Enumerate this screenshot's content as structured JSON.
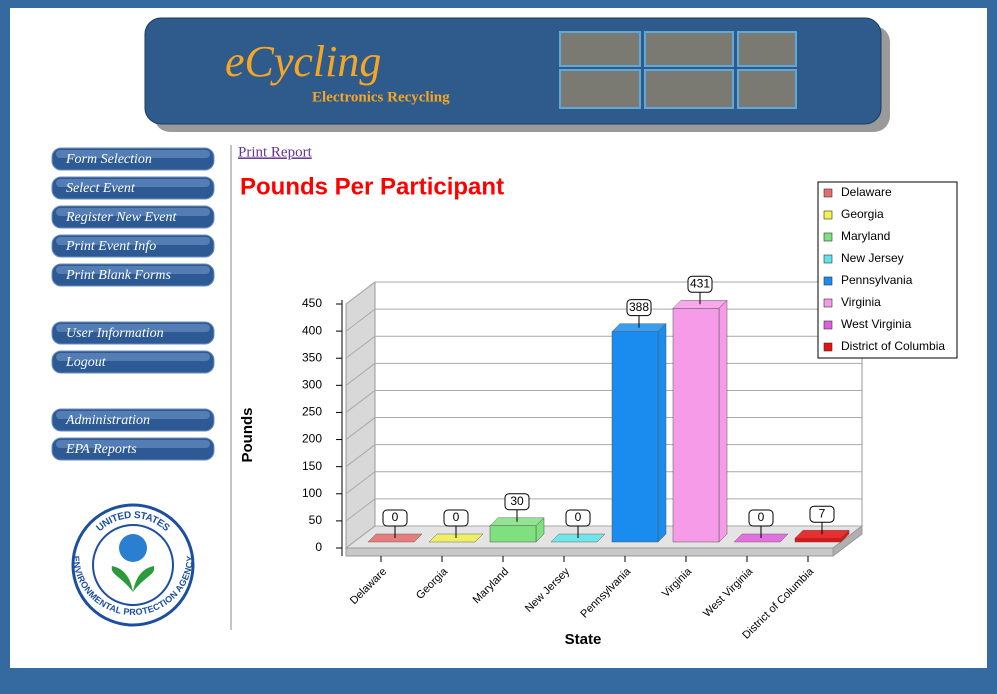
{
  "header": {
    "logo": "eCycling",
    "logo_subtitle": "Electronics Recycling"
  },
  "nav": [
    "Form Selection",
    "Select Event",
    "Register New Event",
    "Print Event Info",
    "Print Blank Forms",
    "User Information",
    "Logout",
    "Administration",
    "EPA Reports"
  ],
  "seal": {
    "top": "UNITED STATES",
    "bottom": "ENVIRONMENTAL PROTECTION AGENCY"
  },
  "print_report": "Print Report",
  "chart_data": {
    "type": "bar",
    "title": "Pounds Per Participant",
    "categories": [
      "Delaware",
      "Georgia",
      "Maryland",
      "New Jersey",
      "Pennsylvania",
      "Virginia",
      "West Virginia",
      "District of Columbia"
    ],
    "values": [
      0,
      0,
      30,
      0,
      388,
      431,
      0,
      7
    ],
    "colors": [
      "#e86a6a",
      "#f2f250",
      "#7fe07f",
      "#5ee4ec",
      "#1a8cf0",
      "#f59be8",
      "#e45ce0",
      "#e81010"
    ],
    "xlabel": "State",
    "ylabel": "Pounds",
    "ylim": [
      0,
      450
    ],
    "yticks": [
      0,
      50,
      100,
      150,
      200,
      250,
      300,
      350,
      400,
      450
    ],
    "grid": true,
    "legend": "top-right"
  }
}
